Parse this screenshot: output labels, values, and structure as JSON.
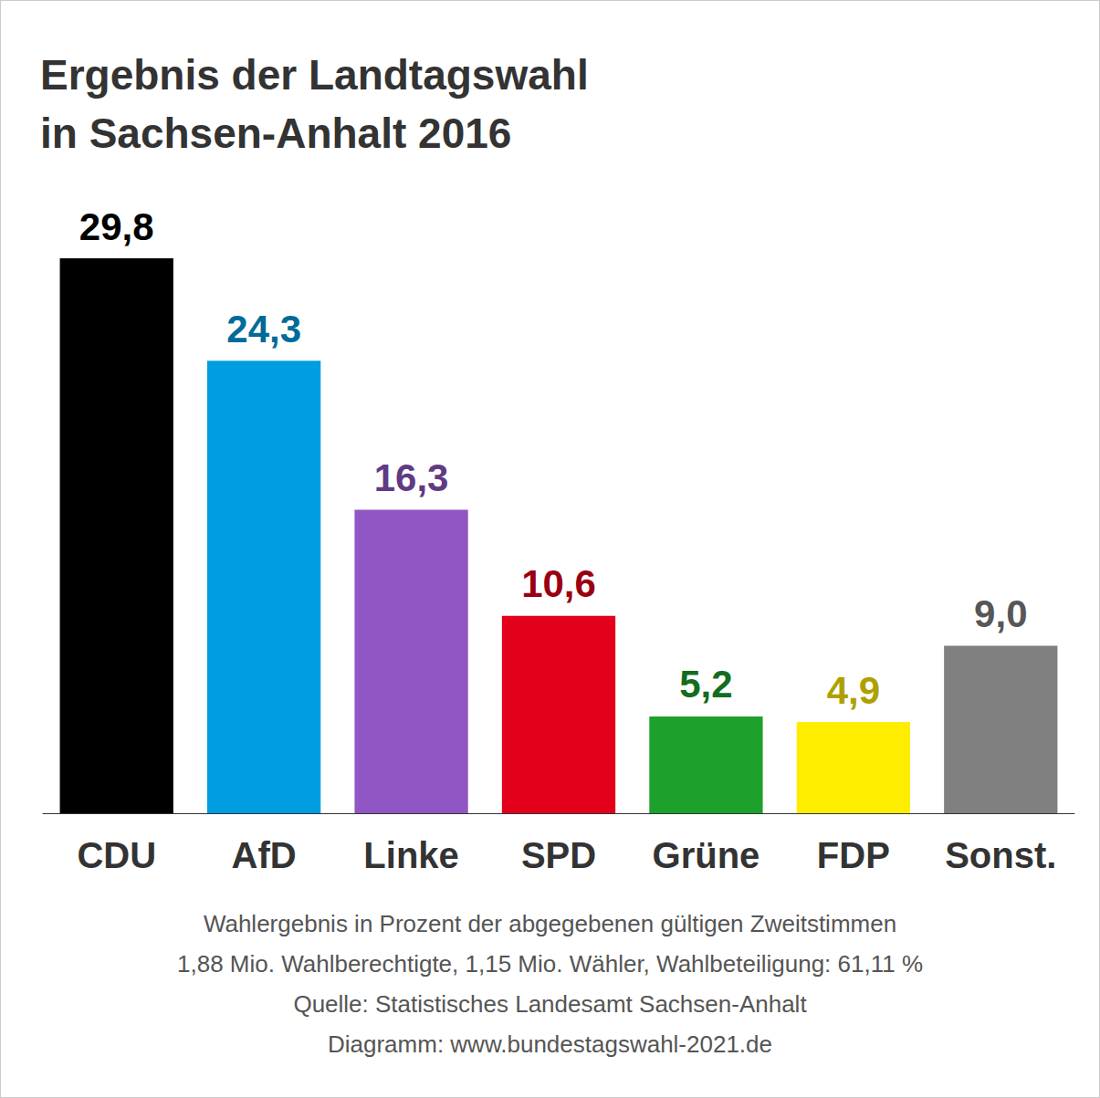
{
  "chart_data": {
    "type": "bar",
    "title": "Ergebnis der Landtagswahl\nin Sachsen-Anhalt 2016",
    "categories": [
      "CDU",
      "AfD",
      "Linke",
      "SPD",
      "Grüne",
      "FDP",
      "Sonst."
    ],
    "values": [
      29.8,
      24.3,
      16.3,
      10.6,
      5.2,
      4.9,
      9.0
    ],
    "value_labels": [
      "29,8",
      "24,3",
      "16,3",
      "10,6",
      "5,2",
      "4,9",
      "9,0"
    ],
    "colors": [
      "#000000",
      "#009ee0",
      "#8f56c4",
      "#e2001a",
      "#1ea12c",
      "#ffed00",
      "#808080"
    ],
    "ylim": [
      0,
      30
    ],
    "grid": false,
    "data_labels": true,
    "tick_labels": "x",
    "annotations": [
      "Wahlergebnis in Prozent der abgegebenen gültigen Zweitstimmen",
      "1,88 Mio. Wahlberechtigte, 1,15 Mio. Wähler, Wahlbeteiligung: 61,11 %",
      "Quelle: Statistisches Landesamt Sachsen-Anhalt",
      "Diagramm: www.bundestagswahl-2021.de"
    ]
  }
}
